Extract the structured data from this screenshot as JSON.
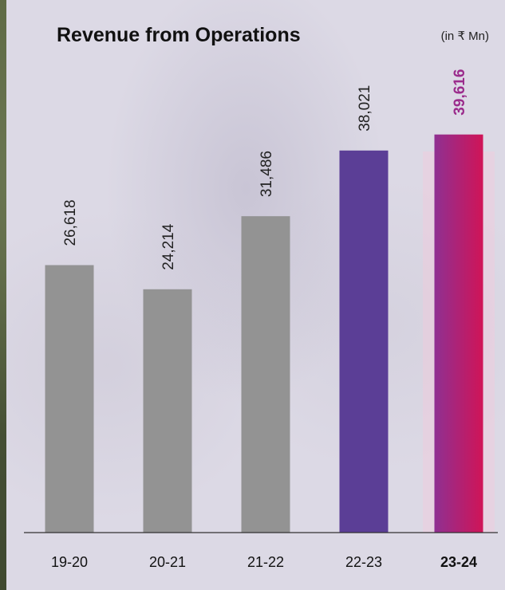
{
  "chart_data": {
    "type": "bar",
    "title": "Revenue from Operations",
    "unit": "(in ₹ Mn)",
    "categories": [
      "19-20",
      "20-21",
      "21-22",
      "22-23",
      "23-24"
    ],
    "values": [
      26618,
      24214,
      31486,
      38021,
      39616
    ],
    "value_labels": [
      "26,618",
      "24,214",
      "31,486",
      "38,021",
      "39,616"
    ],
    "highlight_category": "23-24",
    "bar_colors": [
      "#939393",
      "#939393",
      "#939393",
      "#5b3e96",
      "gradient:#8f3092-#d01457"
    ],
    "value_label_colors": [
      "#222222",
      "#222222",
      "#222222",
      "#222222",
      "#9b2c8c"
    ],
    "xlabel": "",
    "ylabel": "",
    "ylim": [
      0,
      53000
    ],
    "grid": false,
    "legend": "none"
  },
  "colors": {
    "gray_bar": "#939393",
    "purple_bar": "#5b3e96",
    "gradient_start": "#8f3092",
    "gradient_end": "#d01457",
    "axis": "#333333"
  }
}
